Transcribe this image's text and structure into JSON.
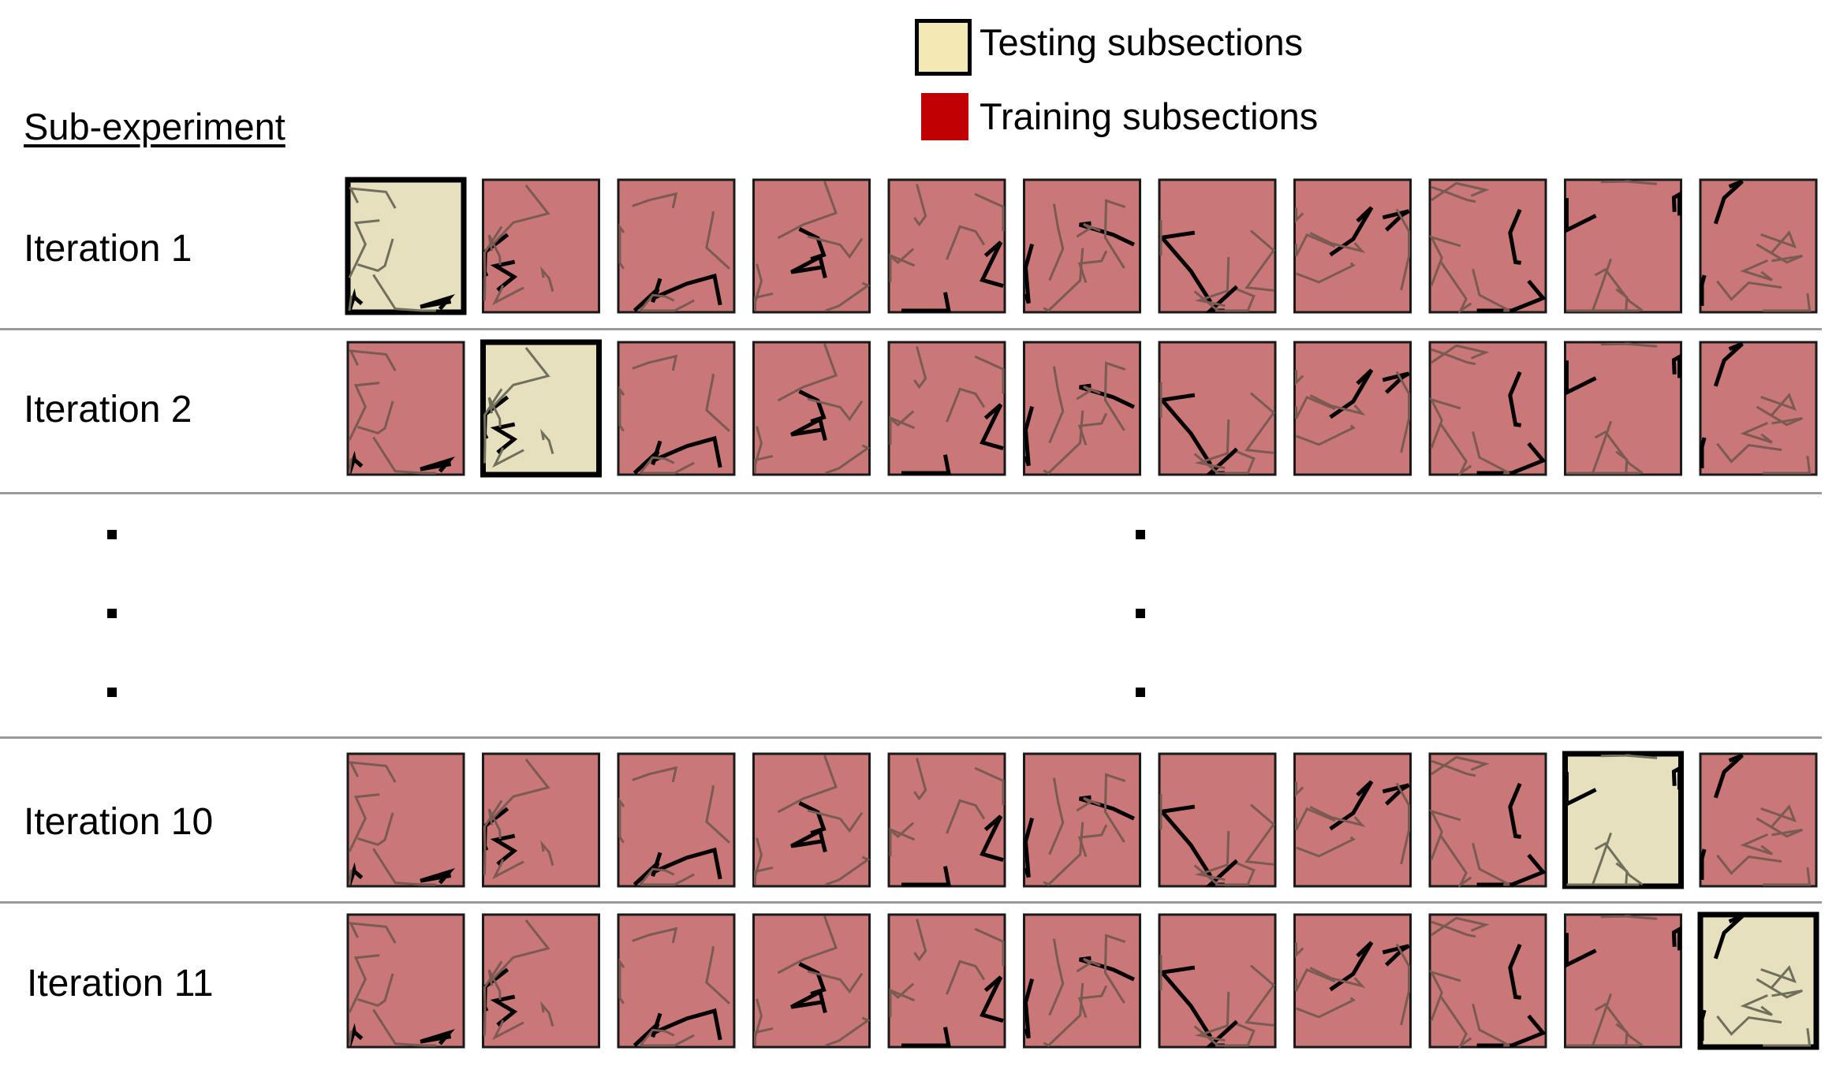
{
  "legend": {
    "testing_label": "Testing subsections",
    "training_label": "Training subsections",
    "testing_color": "#f4e8b4",
    "training_color": "#c00000"
  },
  "heading": "Sub-experiment",
  "rows": [
    {
      "label": "Iteration 1",
      "test_index": 0
    },
    {
      "label": "Iteration 2",
      "test_index": 1
    },
    {
      "label": "Iteration 10",
      "test_index": 9
    },
    {
      "label": "Iteration 11",
      "test_index": 10
    }
  ],
  "subsections_per_row": 11,
  "tile_colors": {
    "training": "#c97777",
    "testing": "#e6e0bf"
  }
}
